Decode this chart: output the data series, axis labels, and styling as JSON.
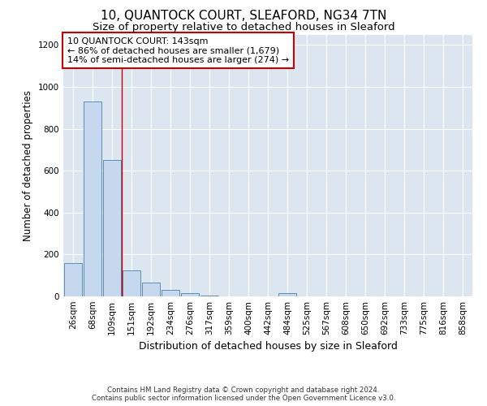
{
  "title": "10, QUANTOCK COURT, SLEAFORD, NG34 7TN",
  "subtitle": "Size of property relative to detached houses in Sleaford",
  "xlabel": "Distribution of detached houses by size in Sleaford",
  "ylabel": "Number of detached properties",
  "bin_labels": [
    "26sqm",
    "68sqm",
    "109sqm",
    "151sqm",
    "192sqm",
    "234sqm",
    "276sqm",
    "317sqm",
    "359sqm",
    "400sqm",
    "442sqm",
    "484sqm",
    "525sqm",
    "567sqm",
    "608sqm",
    "650sqm",
    "692sqm",
    "733sqm",
    "775sqm",
    "816sqm",
    "858sqm"
  ],
  "bar_heights": [
    160,
    930,
    650,
    125,
    65,
    30,
    15,
    3,
    0,
    0,
    0,
    15,
    0,
    0,
    0,
    0,
    0,
    0,
    0,
    0,
    0
  ],
  "bar_color": "#c5d8ee",
  "bar_edge_color": "#5b8db8",
  "property_line_x": 3.0,
  "property_line_color": "#cc0000",
  "annotation_title": "10 QUANTOCK COURT: 143sqm",
  "annotation_line1": "← 86% of detached houses are smaller (1,679)",
  "annotation_line2": "14% of semi-detached houses are larger (274) →",
  "annotation_box_color": "#ffffff",
  "annotation_box_edge": "#cc0000",
  "ylim": [
    0,
    1250
  ],
  "yticks": [
    0,
    200,
    400,
    600,
    800,
    1000,
    1200
  ],
  "bg_color": "#ffffff",
  "plot_bg_color": "#dce6f0",
  "footer_line1": "Contains HM Land Registry data © Crown copyright and database right 2024.",
  "footer_line2": "Contains public sector information licensed under the Open Government Licence v3.0.",
  "title_fontsize": 11,
  "subtitle_fontsize": 9.5,
  "xlabel_fontsize": 9,
  "ylabel_fontsize": 8.5,
  "tick_fontsize": 7.5
}
